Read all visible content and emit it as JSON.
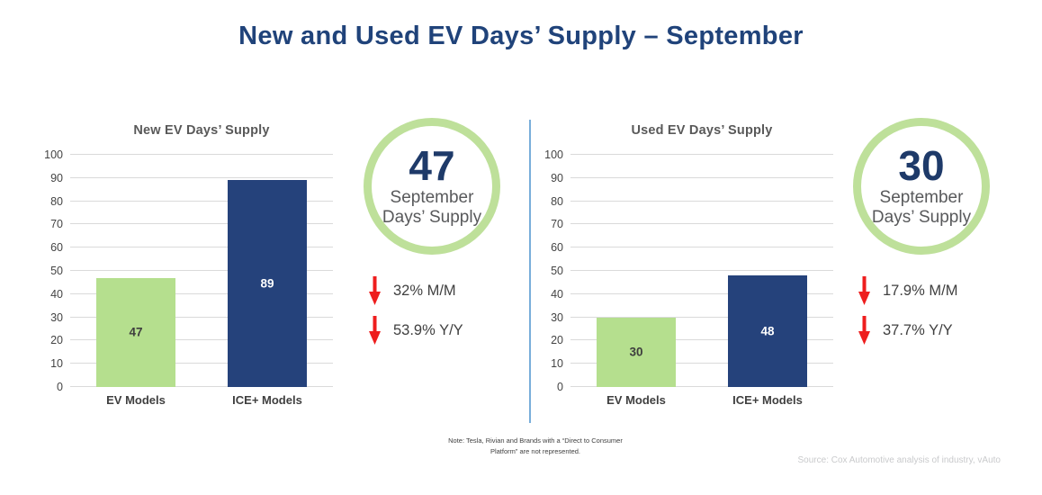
{
  "page": {
    "title": "New and Used EV Days’ Supply – September"
  },
  "chart_data": [
    {
      "type": "bar",
      "title": "New EV Days’ Supply",
      "categories": [
        "EV Models",
        "ICE+ Models"
      ],
      "values": [
        47,
        89
      ],
      "bar_colors": [
        "#B5DF8E",
        "#25427B"
      ],
      "value_label_colors": [
        "#3E3E3E",
        "#FFFFFF"
      ],
      "ylim": [
        0,
        100
      ],
      "ytick_step": 10,
      "grid": "horizontal",
      "legend": "none"
    },
    {
      "type": "bar",
      "title": "Used EV Days’ Supply",
      "categories": [
        "EV Models",
        "ICE+ Models"
      ],
      "values": [
        30,
        48
      ],
      "bar_colors": [
        "#B5DF8E",
        "#25427B"
      ],
      "value_label_colors": [
        "#3E3E3E",
        "#FFFFFF"
      ],
      "ylim": [
        0,
        100
      ],
      "ytick_step": 10,
      "grid": "horizontal",
      "legend": "none"
    }
  ],
  "stats": [
    {
      "value": "47",
      "subtitle_line1": "September",
      "subtitle_line2": "Days’ Supply",
      "ring_color": "#BEE09A",
      "changes": [
        {
          "direction": "down",
          "label": "32% M/M"
        },
        {
          "direction": "down",
          "label": "53.9% Y/Y"
        }
      ]
    },
    {
      "value": "30",
      "subtitle_line1": "September",
      "subtitle_line2": "Days’ Supply",
      "ring_color": "#BEE09A",
      "changes": [
        {
          "direction": "down",
          "label": "17.9% M/M"
        },
        {
          "direction": "down",
          "label": "37.7% Y/Y"
        }
      ]
    }
  ],
  "footer": {
    "note_line1": "Note: Tesla, Rivian and Brands with a “Direct to Consumer",
    "note_line2": "Platform” are not represented.",
    "source": "Source: Cox Automotive analysis of industry, vAuto"
  },
  "colors": {
    "title_navy": "#20437A",
    "bar_green": "#B5DF8E",
    "bar_navy": "#25427B",
    "ring_green": "#BEE09A",
    "arrow_red": "#EE1E1E",
    "divider_blue": "#79AEDA",
    "gridline_gray": "#DADADA",
    "text_gray": "#595959",
    "source_gray": "#C9CACC"
  }
}
